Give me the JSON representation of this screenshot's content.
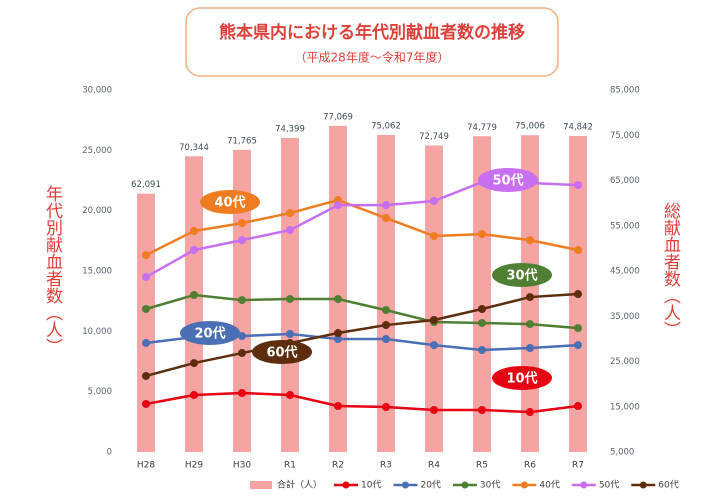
{
  "chart_data": {
    "type": "combo",
    "title": "熊本県内における年代別献血者数の推移",
    "subtitle": "（平成28年度～令和7年度）",
    "y_label": "年代別献血者数（人）",
    "y2_label": "総献血者数（人）",
    "categories": [
      "H28",
      "H29",
      "H30",
      "R1",
      "R2",
      "R3",
      "R4",
      "R5",
      "R6",
      "R7"
    ],
    "ylim": [
      0,
      30000
    ],
    "yticks": [
      0,
      {
        "value": 5000,
        "label": "5,000"
      },
      {
        "value": 10000,
        "label": "10,000"
      },
      {
        "value": 15000,
        "label": "15,000"
      },
      {
        "value": 20000,
        "label": "20,000"
      },
      {
        "value": 25000,
        "label": "25,000"
      },
      {
        "value": 30000,
        "label": "30,000"
      }
    ],
    "y2lim": [
      5000,
      85000
    ],
    "y2ticks": [
      {
        "value": 5000,
        "label": "5,000"
      },
      {
        "value": 15000,
        "label": "15,000"
      },
      {
        "value": 25000,
        "label": "25,000"
      },
      {
        "value": 35000,
        "label": "35,000"
      },
      {
        "value": 45000,
        "label": "45,000"
      },
      {
        "value": 55000,
        "label": "55,000"
      },
      {
        "value": 65000,
        "label": "65,000"
      },
      {
        "value": 75000,
        "label": "75,000"
      },
      {
        "value": 85000,
        "label": "85,000"
      }
    ],
    "grid": false,
    "legend": "bottom",
    "series": [
      {
        "name": "合計（人）",
        "type": "bar",
        "axis": "y2",
        "color": "#f5a3a3",
        "values": [
          62091,
          70344,
          71765,
          74399,
          77069,
          75062,
          72749,
          74779,
          75006,
          74842
        ],
        "value_labels": [
          "62,091",
          "70,344",
          "71,765",
          "74,399",
          "77,069",
          "75,062",
          "72,749",
          "74,779",
          "75,006",
          "74,842"
        ]
      },
      {
        "name": "10代",
        "type": "line",
        "color": "#e60012",
        "values": [
          3980,
          4720,
          4890,
          4720,
          3810,
          3730,
          3480,
          3480,
          3310,
          3810
        ]
      },
      {
        "name": "20代",
        "type": "line",
        "color": "#4a6fb5",
        "values": [
          9030,
          9530,
          9610,
          9780,
          9360,
          9360,
          8860,
          8450,
          8620,
          8860
        ]
      },
      {
        "name": "30代",
        "type": "line",
        "color": "#4f7f32",
        "values": [
          11850,
          13010,
          12590,
          12680,
          12680,
          11760,
          10770,
          10690,
          10600,
          10270
        ]
      },
      {
        "name": "40代",
        "type": "line",
        "color": "#ee7d22",
        "values": [
          16320,
          18310,
          18970,
          19800,
          20880,
          19390,
          17900,
          18060,
          17560,
          16740
        ]
      },
      {
        "name": "50代",
        "type": "line",
        "color": "#c86ef0",
        "values": [
          14500,
          16740,
          17560,
          18390,
          20460,
          20460,
          20800,
          22370,
          22290,
          22120
        ]
      },
      {
        "name": "60代",
        "type": "line",
        "color": "#5c2e0e",
        "values": [
          6300,
          7370,
          8200,
          9030,
          9860,
          10520,
          10940,
          11850,
          12840,
          13090
        ]
      }
    ]
  }
}
